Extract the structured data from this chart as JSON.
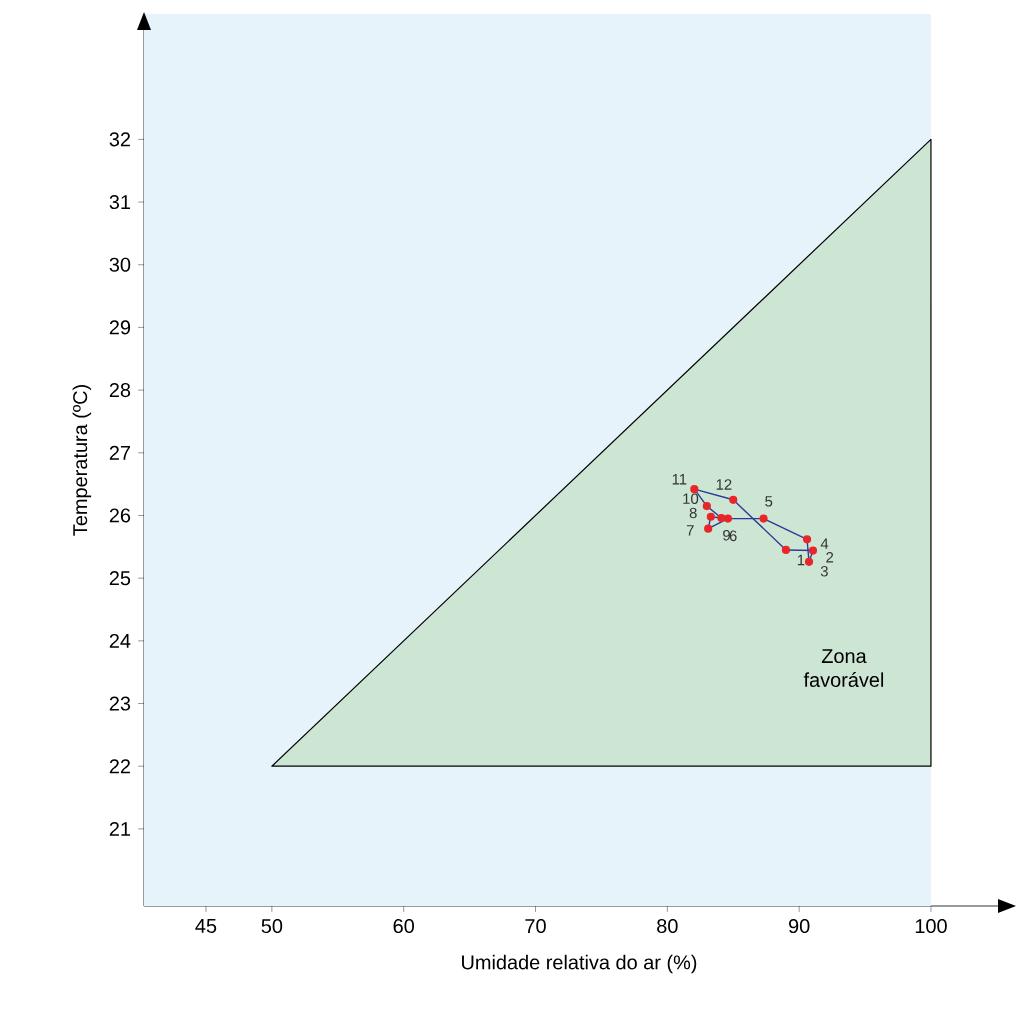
{
  "chart_data": {
    "type": "line",
    "xlabel": "Umidade relativa do ar (%)",
    "ylabel": "Temperatura (ºC)",
    "xlim": [
      40.3,
      106.3
    ],
    "ylim": [
      19.77,
      34.0
    ],
    "bands": [
      {
        "axis": "x",
        "from": 40.3,
        "to": 100,
        "color": "#e6f3fb"
      }
    ],
    "xticks": [
      45,
      50,
      60,
      70,
      80,
      90,
      100
    ],
    "yticks": [
      21,
      22,
      23,
      24,
      25,
      26,
      27,
      28,
      29,
      30,
      31,
      32
    ],
    "series": [
      {
        "type": "area",
        "color": "#cde6d3",
        "x": [
          50,
          100,
          100
        ],
        "values": [
          22,
          32,
          22
        ]
      },
      {
        "color": "#2b3a9a",
        "marker": "circle",
        "colors": [
          "#e8262a",
          "#e8262a",
          "#e8262a",
          "#e8262a",
          "#e8262a",
          "#e8262a",
          "#e8262a",
          "#e8262a",
          "#e8262a",
          "#e8262a",
          "#e8262a",
          "#e8262a"
        ],
        "x": [
          89.0,
          91.05,
          90.75,
          90.6,
          87.3,
          84.6,
          83.1,
          83.3,
          84.1,
          83.0,
          82.05,
          85.0
        ],
        "values": [
          25.45,
          25.44,
          25.26,
          25.62,
          25.95,
          25.95,
          25.79,
          25.98,
          25.96,
          26.15,
          26.42,
          26.25
        ]
      }
    ],
    "annotations": [
      {
        "text": "1",
        "x": 89.0,
        "y": 25.45
      },
      {
        "text": "2",
        "x": 91.05,
        "y": 25.44
      },
      {
        "text": "3",
        "x": 90.75,
        "y": 25.26
      },
      {
        "text": "4",
        "x": 90.6,
        "y": 25.62
      },
      {
        "text": "5",
        "x": 87.3,
        "y": 25.95
      },
      {
        "text": "6",
        "x": 84.6,
        "y": 25.95
      },
      {
        "text": "7",
        "x": 83.1,
        "y": 25.79
      },
      {
        "text": "8",
        "x": 83.3,
        "y": 25.98
      },
      {
        "text": "9",
        "x": 84.1,
        "y": 25.96
      },
      {
        "text": "10",
        "x": 83.0,
        "y": 26.15
      },
      {
        "text": "11",
        "x": 82.05,
        "y": 26.42
      },
      {
        "text": "12",
        "x": 85.0,
        "y": 26.25
      },
      "Zona favorável"
    ],
    "grid": false
  }
}
